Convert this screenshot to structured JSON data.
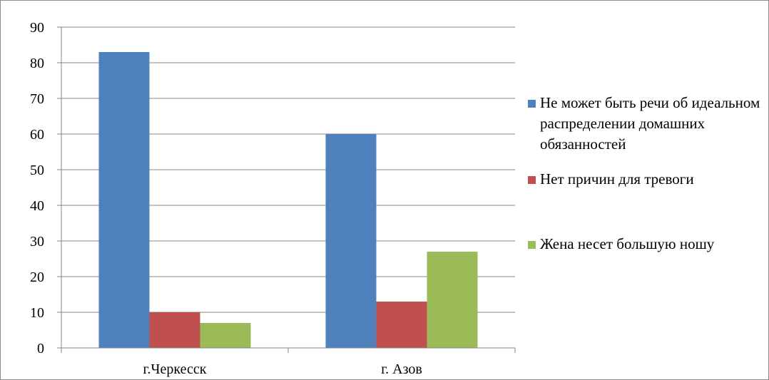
{
  "chart_data": {
    "type": "bar",
    "categories": [
      "г.Черкесск",
      "г. Азов"
    ],
    "series": [
      {
        "name": "Не может быть речи об идеальном распределении домашних обязанностей",
        "values": [
          83,
          60
        ],
        "color": "#4f81bd"
      },
      {
        "name": "Нет причин для тревоги",
        "values": [
          10,
          13
        ],
        "color": "#c0504d"
      },
      {
        "name": "Жена несет большую ношу",
        "values": [
          7,
          27
        ],
        "color": "#9bbb59"
      }
    ],
    "y_ticks": [
      "0",
      "10",
      "20",
      "30",
      "40",
      "50",
      "60",
      "70",
      "80",
      "90"
    ],
    "ylim": [
      0,
      90
    ],
    "grid": true,
    "legend_position": "right",
    "title": "",
    "xlabel": "",
    "ylabel": ""
  }
}
